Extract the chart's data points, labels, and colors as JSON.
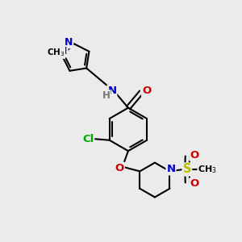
{
  "background_color": "#ebebeb",
  "atom_colors": {
    "C": "#000000",
    "N": "#0000cc",
    "O": "#cc0000",
    "H": "#777777",
    "Cl": "#00aa00",
    "S": "#bbbb00"
  },
  "bond_color": "#000000",
  "bond_width": 1.5,
  "figsize": [
    3.0,
    3.0
  ],
  "dpi": 100,
  "xlim": [
    0,
    10
  ],
  "ylim": [
    0,
    10
  ]
}
